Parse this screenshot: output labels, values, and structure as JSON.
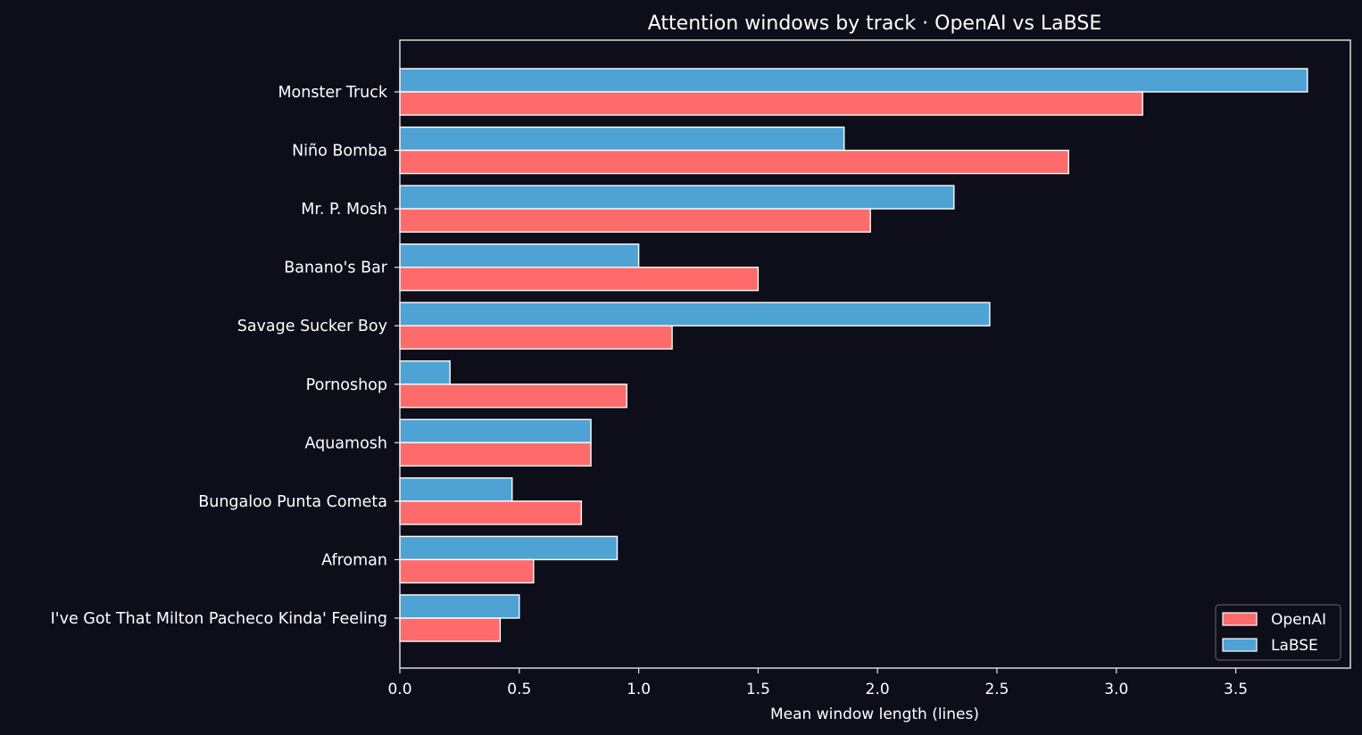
{
  "chart_data": {
    "type": "bar",
    "orientation": "horizontal",
    "title": "Attention windows by track  ·  OpenAI vs LaBSE",
    "xlabel": "Mean window length (lines)",
    "ylabel": "",
    "xlim": [
      0,
      3.98
    ],
    "xticks": [
      "0.0",
      "0.5",
      "1.0",
      "1.5",
      "2.0",
      "2.5",
      "3.0",
      "3.5"
    ],
    "grid": false,
    "legend_position": "lower right",
    "categories": [
      "Monster Truck",
      "Niño Bomba",
      "Mr. P. Mosh",
      "Banano's Bar",
      "Savage Sucker Boy",
      "Pornoshop",
      "Aquamosh",
      "Bungaloo Punta Cometa",
      "Afroman",
      "I've Got That Milton Pacheco Kinda' Feeling"
    ],
    "series": [
      {
        "name": "OpenAI",
        "color": "#ff6b6b",
        "values": [
          3.11,
          2.8,
          1.97,
          1.5,
          1.14,
          0.95,
          0.8,
          0.76,
          0.56,
          0.42
        ]
      },
      {
        "name": "LaBSE",
        "color": "#4ea3d4",
        "values": [
          3.8,
          1.86,
          2.32,
          1.0,
          2.47,
          0.21,
          0.8,
          0.47,
          0.91,
          0.5
        ]
      }
    ]
  }
}
